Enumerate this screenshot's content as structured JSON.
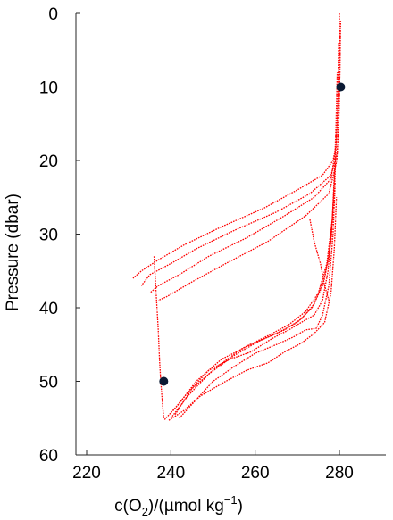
{
  "chart_data": {
    "type": "line",
    "title": "",
    "xlabel": "c(O₂)/(µmol kg⁻¹)",
    "xlabel_parts": [
      "c(O",
      "2",
      ")/(µmol kg",
      "−1",
      ")"
    ],
    "ylabel": "Pressure (dbar)",
    "xlim": [
      220,
      290
    ],
    "ylim": [
      0,
      60
    ],
    "y_inverted": true,
    "xticks": [
      220,
      240,
      260,
      280
    ],
    "xtick_labels": [
      "220",
      "240",
      "260",
      "280"
    ],
    "yticks": [
      0,
      10,
      20,
      30,
      40,
      50,
      60
    ],
    "ytick_labels": [
      "0",
      "10",
      "20",
      "30",
      "40",
      "50",
      "60"
    ],
    "grid": false,
    "line_color": "#ff0000",
    "marker_color": "#0b1a33",
    "series": [
      {
        "values": [
          [
            280.0,
            0
          ],
          [
            280.0,
            5
          ],
          [
            279.8,
            10
          ],
          [
            279.5,
            15
          ],
          [
            279.2,
            18
          ],
          [
            278.5,
            20
          ],
          [
            276,
            22
          ],
          [
            270,
            24
          ],
          [
            262,
            26.5
          ],
          [
            252,
            29
          ],
          [
            243,
            31.5
          ],
          [
            237,
            33.5
          ],
          [
            233,
            35
          ],
          [
            231,
            36
          ]
        ]
      },
      {
        "values": [
          [
            280.2,
            2
          ],
          [
            280.1,
            8
          ],
          [
            279.9,
            14
          ],
          [
            279.5,
            19
          ],
          [
            278,
            22
          ],
          [
            273,
            24.5
          ],
          [
            265,
            27
          ],
          [
            255,
            29.5
          ],
          [
            246,
            32
          ],
          [
            240,
            34
          ],
          [
            235,
            35.5
          ],
          [
            233,
            37
          ]
        ]
      },
      {
        "values": [
          [
            279.8,
            4
          ],
          [
            279.6,
            12
          ],
          [
            279.2,
            18
          ],
          [
            278,
            22.5
          ],
          [
            274,
            25
          ],
          [
            267,
            27.5
          ],
          [
            258,
            30.5
          ],
          [
            249,
            33
          ],
          [
            242,
            35.5
          ],
          [
            237,
            37
          ],
          [
            235,
            38
          ]
        ]
      },
      {
        "values": [
          [
            280.3,
            1
          ],
          [
            280.0,
            12
          ],
          [
            279.4,
            20
          ],
          [
            277.5,
            24.5
          ],
          [
            272,
            27.5
          ],
          [
            263,
            31
          ],
          [
            253,
            34
          ],
          [
            245,
            36.5
          ],
          [
            239,
            38.5
          ],
          [
            237,
            39
          ]
        ]
      },
      {
        "values": [
          [
            238.5,
            55.2
          ],
          [
            242,
            53
          ],
          [
            246,
            50
          ],
          [
            252,
            47
          ],
          [
            259,
            45
          ],
          [
            265,
            43.5
          ],
          [
            270,
            42
          ],
          [
            273.5,
            40
          ],
          [
            276,
            37
          ],
          [
            277.5,
            33
          ],
          [
            278.3,
            28
          ],
          [
            278.8,
            22
          ],
          [
            279.2,
            15
          ],
          [
            279.5,
            8
          ]
        ]
      },
      {
        "values": [
          [
            240,
            55
          ],
          [
            244,
            52
          ],
          [
            249,
            49
          ],
          [
            255,
            46.5
          ],
          [
            261,
            44.5
          ],
          [
            267,
            43
          ],
          [
            271,
            41.5
          ],
          [
            274,
            39.5
          ],
          [
            276.5,
            36
          ],
          [
            278,
            31
          ],
          [
            278.8,
            25
          ],
          [
            279.2,
            18
          ]
        ]
      },
      {
        "values": [
          [
            241,
            54.5
          ],
          [
            245,
            51
          ],
          [
            251,
            48
          ],
          [
            257,
            45.5
          ],
          [
            263,
            43.8
          ],
          [
            268,
            42.3
          ],
          [
            272,
            40.5
          ],
          [
            275,
            38
          ],
          [
            277,
            34
          ],
          [
            278.3,
            28
          ],
          [
            279,
            21
          ]
        ]
      },
      {
        "values": [
          [
            242,
            55
          ],
          [
            246,
            52.5
          ],
          [
            250,
            50
          ],
          [
            255,
            48
          ],
          [
            260,
            46.2
          ],
          [
            265,
            45
          ],
          [
            269,
            44
          ],
          [
            272,
            43
          ],
          [
            274.5,
            42.8
          ],
          [
            276,
            41
          ],
          [
            277.5,
            37
          ],
          [
            278.5,
            30
          ],
          [
            279,
            23
          ]
        ]
      },
      {
        "values": [
          [
            239.5,
            55.3
          ],
          [
            243,
            54
          ],
          [
            247,
            52
          ],
          [
            253,
            50
          ],
          [
            258,
            48.5
          ],
          [
            263,
            47.5
          ],
          [
            267,
            46
          ],
          [
            271,
            44.8
          ],
          [
            274,
            43.5
          ],
          [
            276.5,
            42
          ],
          [
            278,
            38
          ],
          [
            278.8,
            32
          ],
          [
            279.3,
            25
          ]
        ]
      },
      {
        "values": [
          [
            240.5,
            54
          ],
          [
            244,
            51.5
          ],
          [
            249,
            48.5
          ],
          [
            254,
            47
          ],
          [
            259,
            46
          ],
          [
            264,
            44.2
          ],
          [
            268,
            43
          ],
          [
            271.5,
            41.8
          ],
          [
            274,
            41
          ],
          [
            276,
            39
          ],
          [
            277.3,
            35
          ],
          [
            278.2,
            29
          ]
        ]
      },
      {
        "values": [
          [
            236,
            33
          ],
          [
            236.5,
            38
          ],
          [
            237,
            43
          ],
          [
            237.3,
            47
          ],
          [
            237.6,
            50
          ],
          [
            238,
            53
          ],
          [
            238.3,
            55
          ]
        ]
      },
      {
        "values": [
          [
            273,
            28
          ],
          [
            274,
            31
          ],
          [
            275.5,
            34
          ],
          [
            276.5,
            37
          ],
          [
            277.5,
            39
          ]
        ]
      }
    ],
    "markers": [
      {
        "x": 280.3,
        "y": 10
      },
      {
        "x": 238.3,
        "y": 50
      }
    ]
  }
}
